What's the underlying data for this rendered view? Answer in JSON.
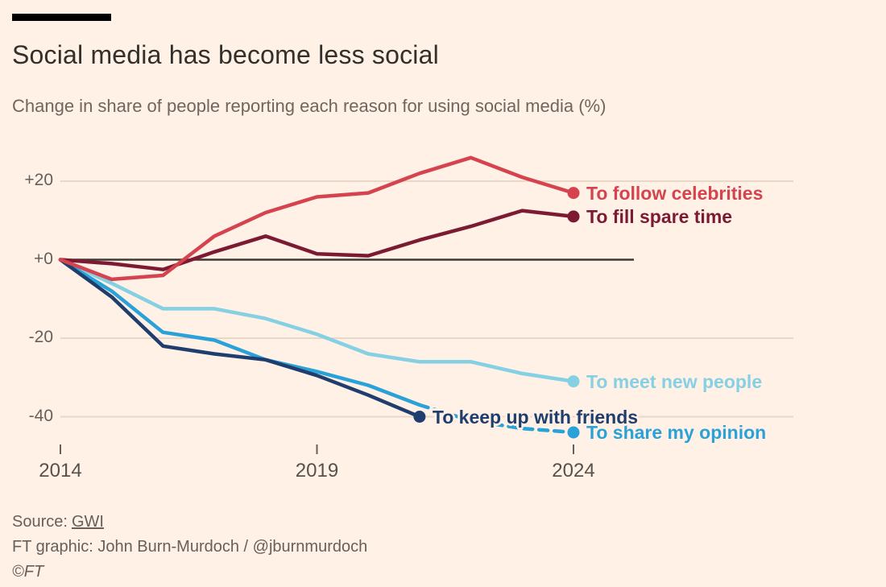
{
  "header": {
    "title": "Social media has become less social",
    "subtitle": "Change in share of people reporting each reason for using social media (%)"
  },
  "footer": {
    "source_label": "Source:",
    "source_link": "GWI",
    "credit": "FT graphic: John Burn-Murdoch / @jburnmurdoch",
    "copyright": "©FT"
  },
  "colors": {
    "background": "#FFF1E5",
    "top_bar": "#000000",
    "title_text": "#33302c",
    "subtitle_text": "#6f665d",
    "y_axis_label": "#66605c",
    "x_axis_label": "#57514c",
    "gridline": "#e9d8c8",
    "zero_line": "#403a35",
    "tick": "#66605c",
    "footer_text": "#66605c"
  },
  "chart_data": {
    "type": "line",
    "title": "Social media has become less social",
    "subtitle": "Change in share of people reporting each reason for using social media (%)",
    "x": [
      2014,
      2015,
      2016,
      2017,
      2018,
      2019,
      2020,
      2021,
      2022,
      2023,
      2024
    ],
    "x_tick_years": [
      2014,
      2019,
      2024
    ],
    "x_tick_labels": [
      "2014",
      "2019",
      "2024"
    ],
    "y_ticks": [
      {
        "label": "+20",
        "value": 20
      },
      {
        "label": "+0",
        "value": 0
      },
      {
        "label": "-20",
        "value": -20
      },
      {
        "label": "-40",
        "value": -40
      }
    ],
    "ylim": [
      -48,
      28
    ],
    "grid": true,
    "legend_position": "end-of-line",
    "series": [
      {
        "key": "meet_new_people",
        "name": "To meet new people",
        "color": "#85d0e2",
        "values": [
          0,
          -6,
          -12.5,
          -12.5,
          -15,
          -19,
          -24,
          -26,
          -26,
          -29,
          -31
        ]
      },
      {
        "key": "share_my_opinion",
        "name": "To share my opinion",
        "color": "#2aa2d9",
        "values": [
          0,
          -8,
          -18.5,
          -20.5,
          -25.5,
          -28.5,
          -32,
          -37,
          -41,
          -43,
          -44
        ],
        "dash_from_index": 7
      },
      {
        "key": "keep_up_with_friends",
        "name": "To keep up with friends",
        "color": "#1f3e6e",
        "values": [
          0,
          -9.5,
          -22,
          -24,
          -25.5,
          -29.5,
          -34.5,
          -40
        ]
      },
      {
        "key": "fill_spare_time",
        "name": "To fill spare time",
        "color": "#7d1a33",
        "values": [
          0,
          -1,
          -2.5,
          2,
          6,
          1.5,
          1,
          5,
          8.5,
          12.5,
          11
        ]
      },
      {
        "key": "follow_celebrities",
        "name": "To follow celebrities",
        "color": "#d5434f",
        "values": [
          0,
          -5,
          -4,
          6,
          12,
          16,
          17,
          22,
          26,
          21,
          17
        ]
      }
    ]
  }
}
